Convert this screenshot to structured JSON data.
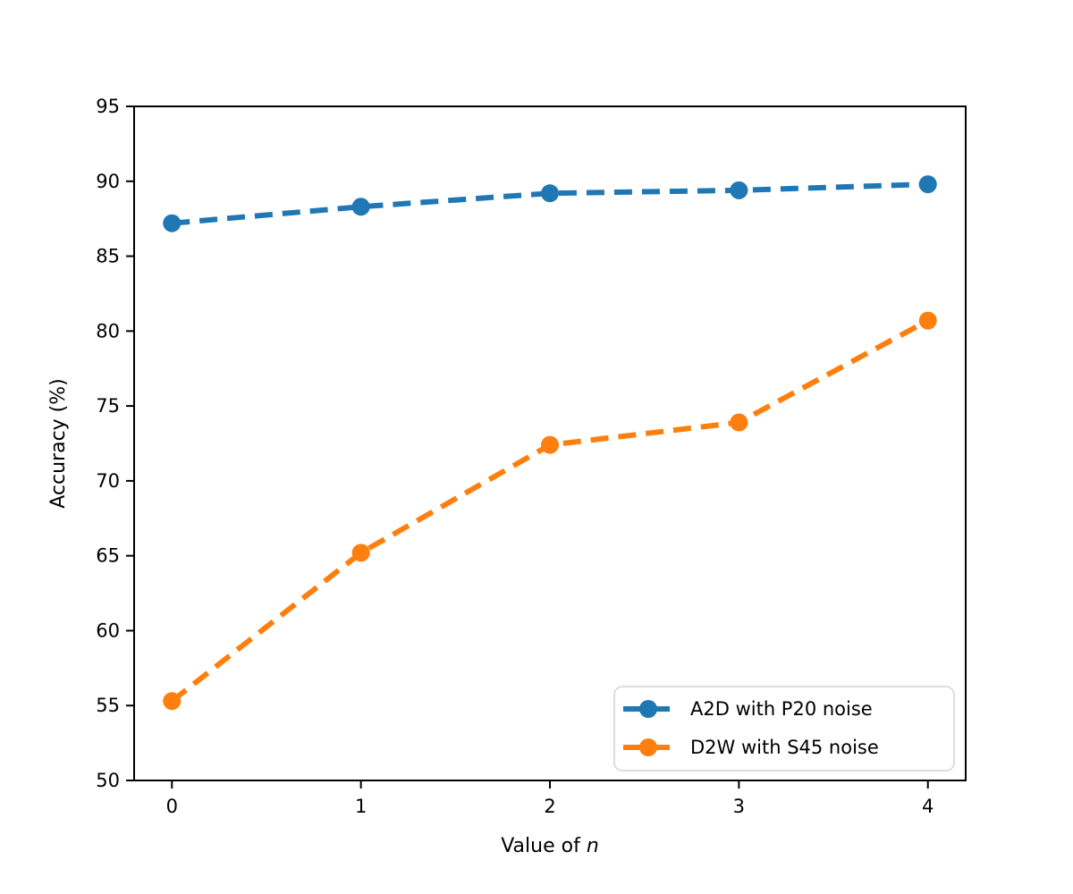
{
  "chart_data": {
    "type": "line",
    "title": "",
    "xlabel_prefix": "Value of ",
    "xlabel_var": "n",
    "ylabel": "Accuracy (%)",
    "x": [
      0,
      1,
      2,
      3,
      4
    ],
    "xticks": [
      "0",
      "1",
      "2",
      "3",
      "4"
    ],
    "yticks": [
      "50",
      "55",
      "60",
      "65",
      "70",
      "75",
      "80",
      "85",
      "90",
      "95"
    ],
    "xlim": [
      -0.2,
      4.2
    ],
    "ylim": [
      50,
      95
    ],
    "grid": false,
    "line_style": "dashed",
    "marker": "circle",
    "legend_position": "lower right",
    "series": [
      {
        "name": "A2D with P20 noise",
        "color": "#1f77b4",
        "values": [
          87.2,
          88.3,
          89.2,
          89.4,
          89.8
        ]
      },
      {
        "name": "D2W with S45 noise",
        "color": "#ff7f0e",
        "values": [
          55.3,
          65.2,
          72.4,
          73.9,
          80.7
        ]
      }
    ]
  }
}
